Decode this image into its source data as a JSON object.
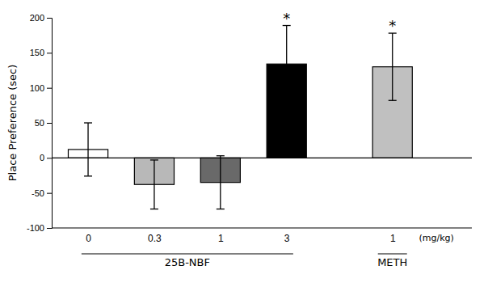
{
  "chart_data": {
    "type": "bar",
    "ylabel": "Place Preference (sec)",
    "xlabel": "(mg/kg)",
    "categories": [
      "0",
      "0.3",
      "1",
      "3",
      "1"
    ],
    "values": [
      12,
      -38,
      -35,
      134,
      130
    ],
    "errors": [
      38,
      35,
      38,
      55,
      48
    ],
    "colors": [
      "#ffffff",
      "#b8b8b8",
      "#696969",
      "#000000",
      "#c0c0c0"
    ],
    "groups": [
      {
        "label": "25B-NBF",
        "size": 4
      },
      {
        "label": "METH",
        "size": 1
      }
    ],
    "annotations": [
      {
        "text": "*",
        "bar": 3
      },
      {
        "text": "*",
        "bar": 4
      }
    ],
    "ylim": [
      -100,
      200
    ],
    "yticks": [
      -100,
      -50,
      0,
      50,
      100,
      150,
      200
    ]
  }
}
